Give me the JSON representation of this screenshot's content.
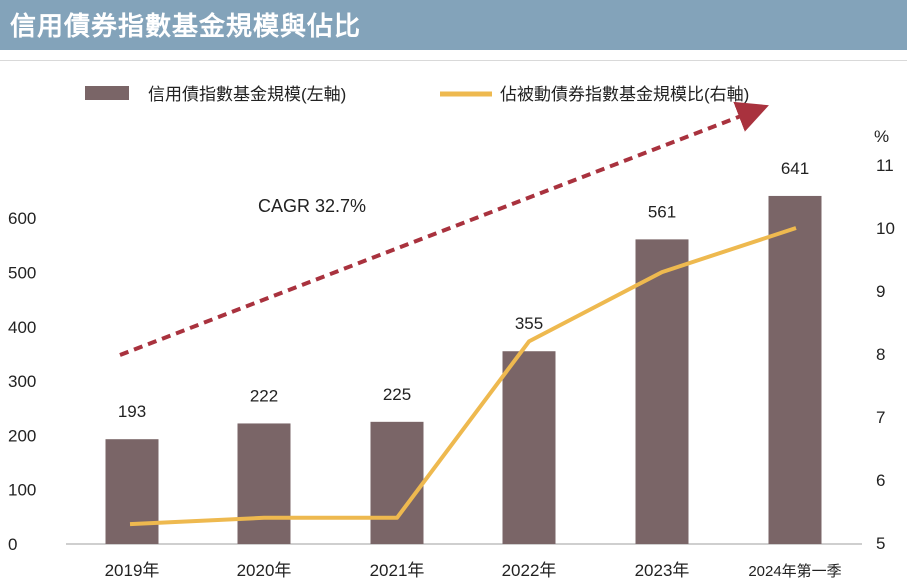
{
  "title": "信用債券指數基金規模與佔比",
  "colors": {
    "title_bg": "#83a3ba",
    "bar": "#7a6567",
    "line": "#eeb94f",
    "arrow": "#a9323e"
  },
  "chart_data": {
    "type": "bar",
    "title": "信用債券指數基金規模與佔比",
    "categories": [
      "2019年",
      "2020年",
      "2021年",
      "2022年",
      "2023年",
      "2024年第一季"
    ],
    "series": [
      {
        "name": "信用債指數基金規模(左軸)",
        "type": "bar",
        "axis": "left",
        "values": [
          193,
          222,
          225,
          355,
          561,
          641
        ],
        "labels": [
          "193",
          "222",
          "225",
          "355",
          "561",
          "641"
        ]
      },
      {
        "name": "佔被動債券指數基金規模比(右軸)",
        "type": "line",
        "axis": "right",
        "values": [
          5.3,
          5.4,
          5.4,
          8.2,
          9.3,
          10.0
        ]
      }
    ],
    "y_left": {
      "min": 0,
      "max": 700,
      "ticks": [
        0,
        100,
        200,
        300,
        400,
        500,
        600
      ]
    },
    "y_right": {
      "min": 5,
      "max": 11,
      "unit": "%",
      "ticks": [
        5,
        6,
        7,
        8,
        9,
        10,
        11
      ]
    },
    "annotation": "CAGR 32.7%",
    "legend_position": "top",
    "grid": false
  }
}
